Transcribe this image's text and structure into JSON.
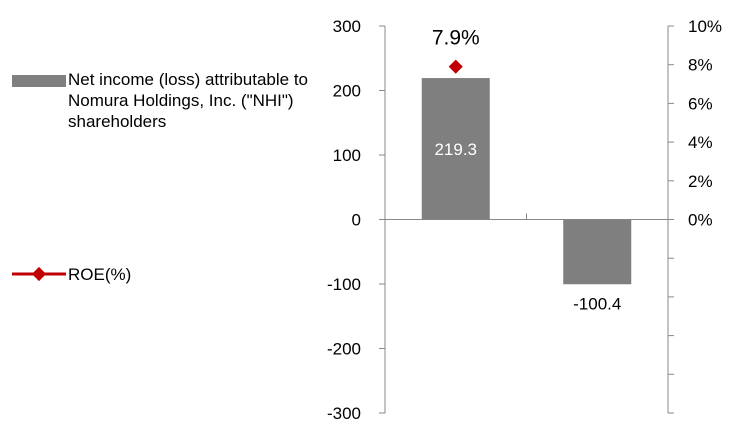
{
  "chart_data": {
    "type": "bar",
    "categories": [
      "",
      ""
    ],
    "series": [
      {
        "name": "Net income (loss) attributable to Nomura Holdings, Inc. (\"NHI\") shareholders",
        "type": "bar",
        "axis": "left",
        "values": [
          219.3,
          -100.4
        ],
        "labels": [
          "219.3",
          "-100.4"
        ],
        "color": "#7f7f7f"
      },
      {
        "name": "ROE(%)",
        "type": "line-marker",
        "axis": "right",
        "values": [
          7.9,
          null
        ],
        "labels": [
          "7.9%",
          ""
        ],
        "color": "#c00000"
      }
    ],
    "y_left": {
      "ylim": [
        -300,
        300
      ],
      "ticks": [
        "300",
        "200",
        "100",
        "0",
        "-100",
        "-200",
        "-300"
      ]
    },
    "y_right": {
      "ylim": [
        -10,
        10
      ],
      "ticks": [
        "10%",
        "8%",
        "6%",
        "4%",
        "2%",
        "0%"
      ]
    },
    "legend_position": "left",
    "grid": false
  },
  "colors": {
    "bar": "#7f7f7f",
    "roe": "#c00000",
    "axis": "#888888"
  }
}
